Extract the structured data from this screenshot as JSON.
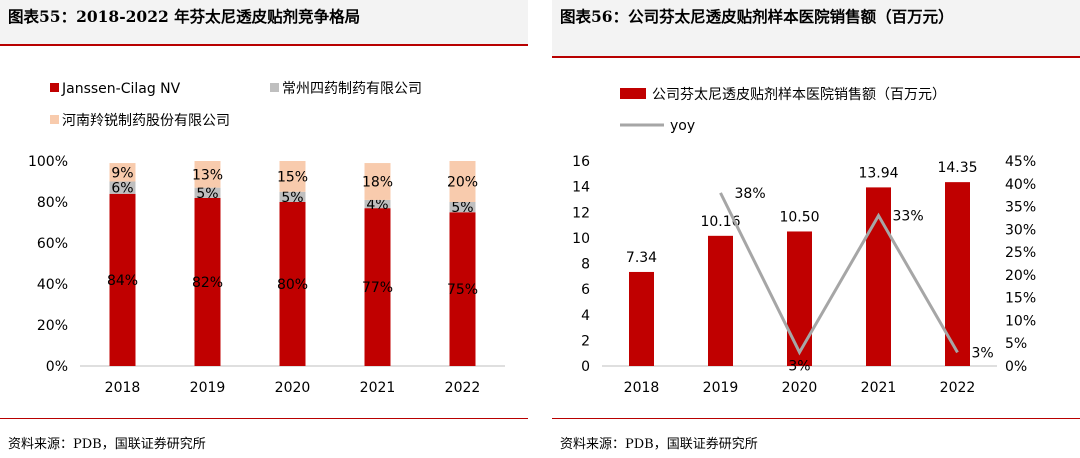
{
  "left": {
    "title": "图表55：2018-2022 年芬太尼透皮贴剂竞争格局",
    "source": "资料来源：PDB，国联证券研究所"
  },
  "right": {
    "title": "图表56：公司芬太尼透皮贴剂样本医院销售额（百万元）",
    "source": "资料来源：PDB，国联证券研究所"
  },
  "chart_data": [
    {
      "type": "bar",
      "stacked": true,
      "title": "2018-2022 年芬太尼透皮贴剂竞争格局",
      "categories": [
        "2018",
        "2019",
        "2020",
        "2021",
        "2022"
      ],
      "series": [
        {
          "name": "Janssen-Cilag NV",
          "values": [
            84,
            82,
            80,
            77,
            75
          ],
          "labels": [
            "84%",
            "82%",
            "80%",
            "77%",
            "75%"
          ],
          "color": "#c00000"
        },
        {
          "name": "常州四药制药有限公司",
          "values": [
            6,
            5,
            5,
            4,
            5
          ],
          "labels": [
            "6%",
            "5%",
            "5%",
            "4%",
            "5%"
          ],
          "color": "#bfbfbf"
        },
        {
          "name": "河南羚锐制药股份有限公司",
          "values": [
            9,
            13,
            15,
            18,
            20
          ],
          "labels": [
            "9%",
            "13%",
            "15%",
            "18%",
            "20%"
          ],
          "color": "#f8cbad"
        }
      ],
      "ylim": [
        0,
        100
      ],
      "yticks": [
        "0%",
        "20%",
        "40%",
        "60%",
        "80%",
        "100%"
      ],
      "legend_position": "top-left"
    },
    {
      "type": "bar",
      "title": "公司芬太尼透皮贴剂样本医院销售额（百万元）",
      "categories": [
        "2018",
        "2019",
        "2020",
        "2021",
        "2022"
      ],
      "bar_series": {
        "name": "公司芬太尼透皮贴剂样本医院销售额（百万元）",
        "values": [
          7.34,
          10.16,
          10.5,
          13.94,
          14.35
        ],
        "labels": [
          "7.34",
          "10.16",
          "10.50",
          "13.94",
          "14.35"
        ],
        "color": "#c00000"
      },
      "line_series": {
        "name": "yoy",
        "values": [
          38,
          3,
          33,
          3
        ],
        "labels": [
          "38%",
          "3%",
          "33%",
          "3%"
        ],
        "color": "#a6a6a6"
      },
      "ylim_left": [
        0,
        16
      ],
      "yticks_left": [
        "0",
        "2",
        "4",
        "6",
        "8",
        "10",
        "12",
        "14",
        "16"
      ],
      "ylim_right": [
        0,
        45
      ],
      "yticks_right": [
        "0%",
        "5%",
        "10%",
        "15%",
        "20%",
        "25%",
        "30%",
        "35%",
        "40%",
        "45%"
      ],
      "legend_position": "top-left"
    }
  ]
}
